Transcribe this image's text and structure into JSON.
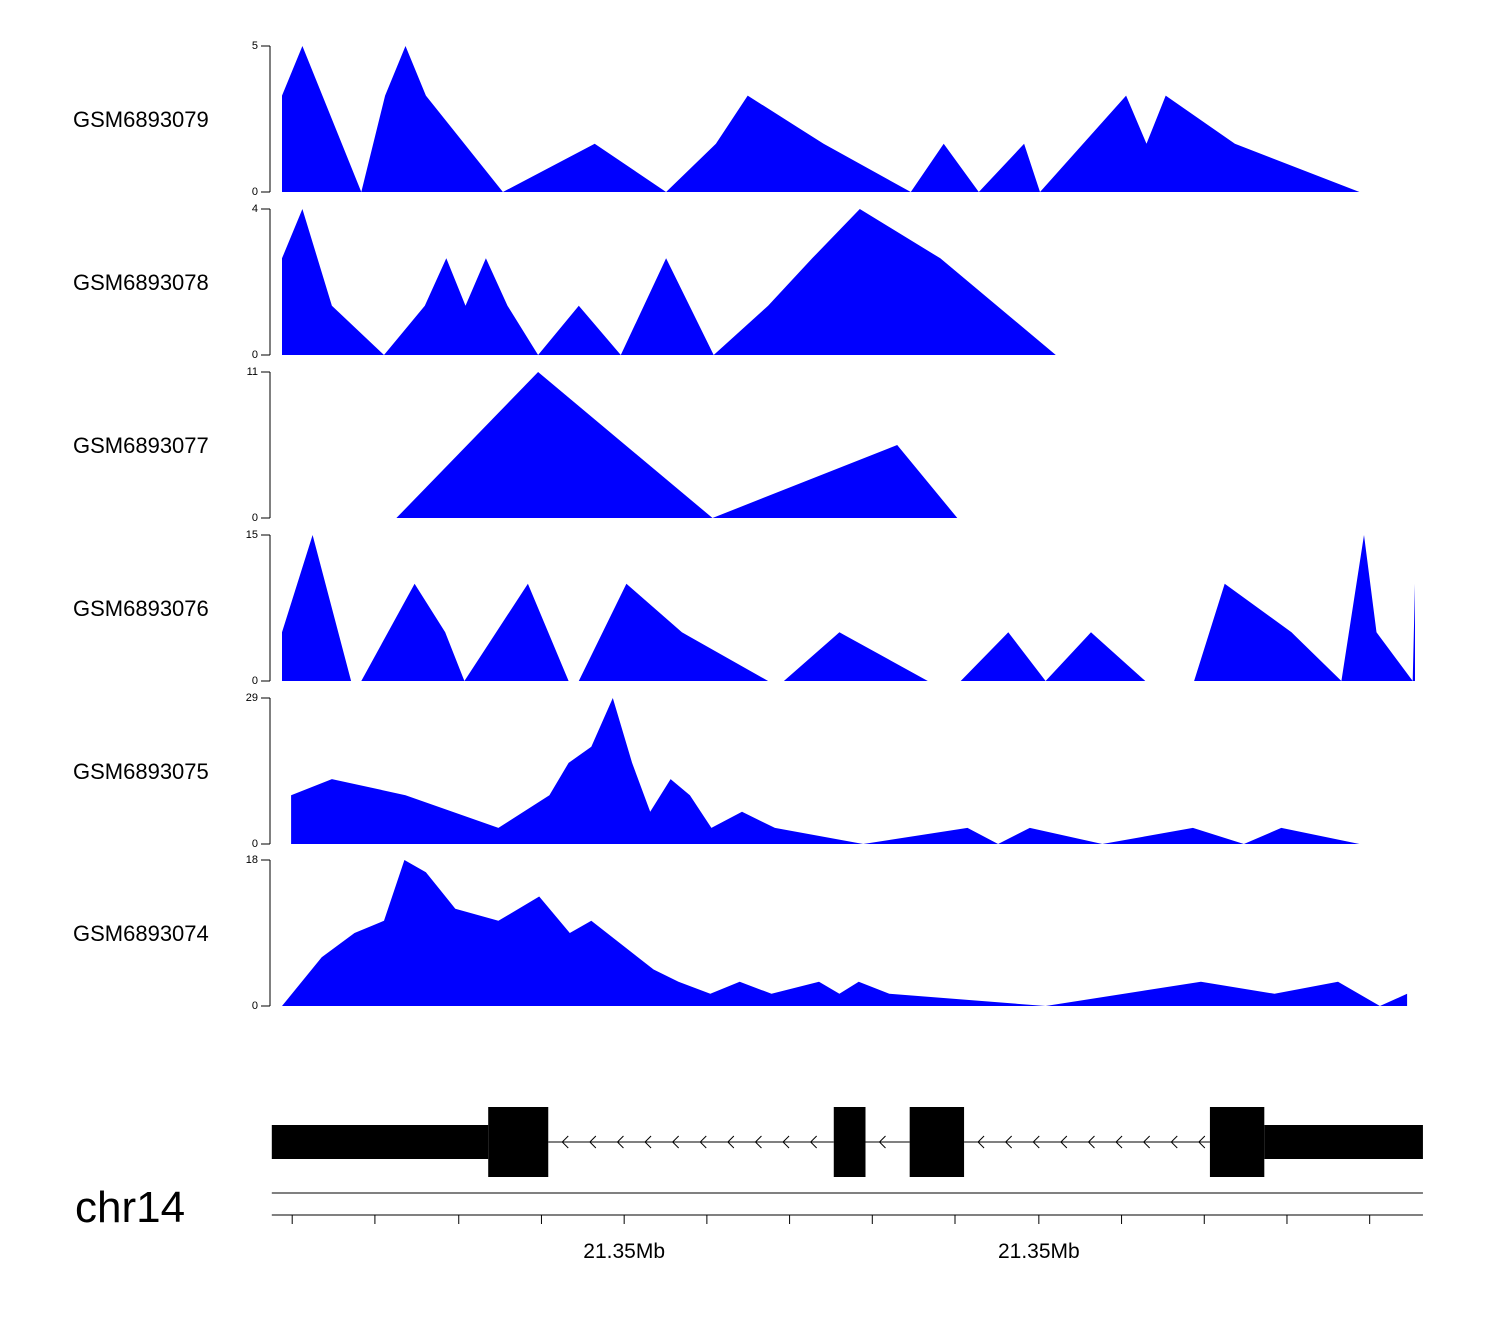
{
  "chart_data": {
    "type": "area",
    "chromosome": "chr14",
    "fill_color": "#0000ff",
    "gene_color": "#000000",
    "x_range": [
      0,
      100
    ],
    "x_tick_labels": [
      "21.35Mb",
      "21.35Mb"
    ],
    "tracks": [
      {
        "name": "GSM6893079",
        "ymax": 5,
        "ymin_label": "0",
        "ymax_label": "5",
        "x": [
          0,
          1.8,
          7,
          9.1,
          10.9,
          12.7,
          19.5,
          27.6,
          33.9,
          38.3,
          41.1,
          47.8,
          55.5,
          58.4,
          61.5,
          65.5,
          66.9,
          74.5,
          76.3,
          78,
          84.1,
          95.1
        ],
        "y": [
          3.3,
          5,
          0,
          3.3,
          5,
          3.3,
          0,
          1.65,
          0,
          1.65,
          3.3,
          1.65,
          0,
          1.65,
          0,
          1.65,
          0,
          3.3,
          1.65,
          3.3,
          1.65,
          0
        ]
      },
      {
        "name": "GSM6893078",
        "ymax": 4,
        "ymin_label": "0",
        "ymax_label": "4",
        "x": [
          0,
          1.8,
          4.4,
          9,
          12.6,
          14.5,
          16.2,
          18,
          19.9,
          22.6,
          26.2,
          29.9,
          33.9,
          38.1,
          42.9,
          46.8,
          51,
          58.1,
          68.3
        ],
        "y": [
          2.65,
          4,
          1.35,
          0,
          1.35,
          2.65,
          1.35,
          2.65,
          1.35,
          0,
          1.35,
          0,
          2.65,
          0,
          1.35,
          2.65,
          4,
          2.65,
          0
        ]
      },
      {
        "name": "GSM6893077",
        "ymax": 11,
        "ymin_label": "0",
        "ymax_label": "11",
        "x": [
          10.1,
          22.6,
          38,
          54.3,
          59.6,
          80.4
        ],
        "y": [
          0,
          11,
          0,
          5.5,
          0,
          0
        ]
      },
      {
        "name": "GSM6893076",
        "ymax": 15,
        "ymin_label": "0",
        "ymax_label": "15",
        "x": [
          0,
          2.7,
          6.1,
          7,
          11.7,
          14.4,
          16.1,
          21.7,
          25.3,
          26.2,
          30.4,
          35.3,
          42.9,
          44.3,
          49.2,
          57,
          59.9,
          64.1,
          67.4,
          71.4,
          76.2,
          80.5,
          83.2,
          89.1,
          93.5,
          95.5,
          96.6,
          99.8,
          100
        ],
        "y": [
          5,
          15,
          0,
          0,
          10,
          5,
          0,
          10,
          0,
          0,
          10,
          5,
          0,
          0,
          5,
          0,
          0,
          5,
          0,
          5,
          0,
          0,
          10,
          5,
          0,
          15,
          5,
          0,
          10
        ]
      },
      {
        "name": "GSM6893075",
        "ymax": 29,
        "ymin_label": "0",
        "ymax_label": "29",
        "x": [
          0.8,
          4.4,
          10.9,
          19.1,
          23.6,
          25.3,
          27.3,
          29.2,
          30.9,
          32.5,
          34.3,
          36,
          37.9,
          40.6,
          43.5,
          51.3,
          60.5,
          63.2,
          66,
          72.4,
          80.4,
          84.9,
          88.2,
          95.1
        ],
        "y": [
          9.7,
          12.9,
          9.7,
          3.2,
          9.7,
          16.1,
          19.3,
          29,
          16.1,
          6.4,
          12.9,
          9.7,
          3.2,
          6.4,
          3.2,
          0,
          3.2,
          0,
          3.2,
          0,
          3.2,
          0,
          3.2,
          0
        ]
      },
      {
        "name": "GSM6893074",
        "ymax": 18,
        "ymin_label": "0",
        "ymax_label": "18",
        "x": [
          0,
          3.5,
          6.4,
          9,
          10.8,
          12.7,
          15.3,
          19.1,
          22.7,
          25.4,
          27.3,
          32.8,
          35,
          37.8,
          40.4,
          43.2,
          47.4,
          49.2,
          50.9,
          53.6,
          67.4,
          81.1,
          87.6,
          93.2,
          96.9,
          99.3
        ],
        "y": [
          0,
          6,
          9,
          10.5,
          18,
          16.5,
          12,
          10.5,
          13.5,
          9,
          10.5,
          4.5,
          3,
          1.5,
          3,
          1.5,
          3,
          1.5,
          3,
          1.5,
          0,
          3,
          1.5,
          3,
          0,
          1.5
        ]
      }
    ],
    "gene_model": {
      "strand": "-",
      "x_range": [
        -0.9,
        100.7
      ],
      "utr_blocks": [
        [
          -0.9,
          18.2
        ],
        [
          86.7,
          100.7
        ]
      ],
      "exon_blocks": [
        [
          18.2,
          23.5
        ],
        [
          48.7,
          51.5
        ],
        [
          55.4,
          60.2
        ],
        [
          81.9,
          86.7
        ]
      ],
      "introns": [
        [
          23.5,
          48.7
        ],
        [
          51.5,
          55.4
        ],
        [
          60.2,
          81.9
        ]
      ]
    },
    "axis": {
      "tick_positions": [
        0.9,
        8.2,
        15.6,
        22.9,
        30.2,
        37.5,
        44.8,
        52.1,
        59.4,
        66.8,
        74.1,
        81.4,
        88.7,
        96
      ],
      "labeled_ticks": [
        30.2,
        66.8
      ]
    }
  }
}
